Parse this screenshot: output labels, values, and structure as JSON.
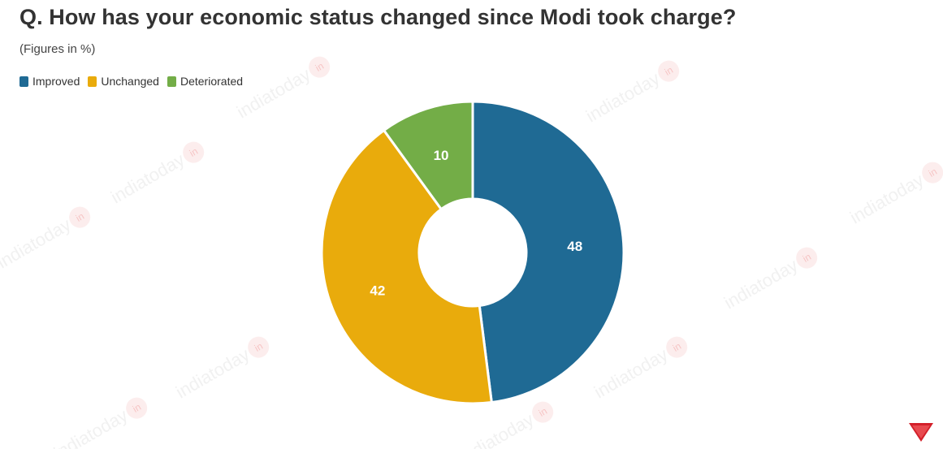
{
  "header": {
    "title": "Q. How has your economic status changed since Modi took charge?",
    "subtitle": "(Figures in %)"
  },
  "watermark": {
    "text": "indiatoday",
    "badge": "in"
  },
  "chart_data": {
    "type": "pie",
    "variant": "donut",
    "title": "Q. How has your economic status changed since Modi took charge?",
    "subtitle": "(Figures in %)",
    "legend_position": "top-left",
    "categories": [
      "Improved",
      "Unchanged",
      "Deteriorated"
    ],
    "values": [
      48,
      42,
      10
    ],
    "colors": [
      "#1f6a94",
      "#e9ab0c",
      "#73ad47"
    ],
    "start_angle_deg": 0,
    "direction": "clockwise"
  }
}
